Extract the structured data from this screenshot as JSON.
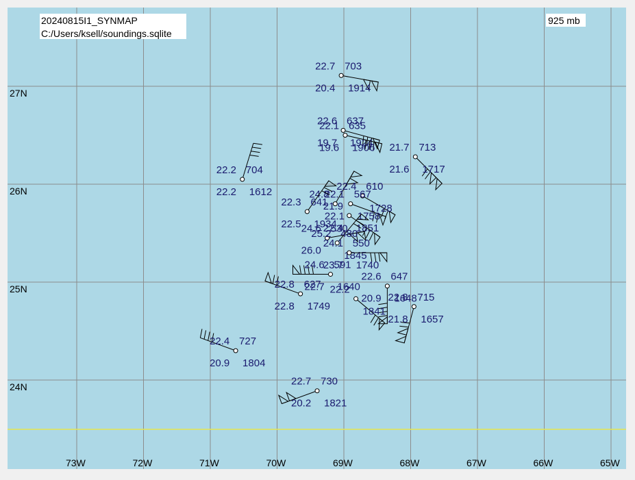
{
  "title": {
    "line1": "20240815I1_SYNMAP",
    "line2": "C:/Users/ksell/soundings.sqlite"
  },
  "level": "925 mb",
  "colors": {
    "ocean": "#add8e6",
    "grid": "#8c8c8c",
    "text": "#1a1a6e",
    "barb": "#000000",
    "accent": "#e6e64d",
    "frame": "#ffffff"
  },
  "lat_labels": [
    {
      "text": "27N",
      "lat": 27
    },
    {
      "text": "26N",
      "lat": 26
    },
    {
      "text": "25N",
      "lat": 25
    },
    {
      "text": "24N",
      "lat": 24
    }
  ],
  "lon_labels": [
    {
      "text": "73W",
      "lon": -73
    },
    {
      "text": "72W",
      "lon": -72
    },
    {
      "text": "71W",
      "lon": -71
    },
    {
      "text": "70W",
      "lon": -70
    },
    {
      "text": "69W",
      "lon": -69
    },
    {
      "text": "68W",
      "lon": -68
    },
    {
      "text": "67W",
      "lon": -67
    },
    {
      "text": "66W",
      "lon": -66
    },
    {
      "text": "65W",
      "lon": -65
    }
  ],
  "stations": [
    {
      "lat": 27.11,
      "lon": -69.04,
      "temp": "22.7",
      "dew": "20.4",
      "hgt": "703",
      "time": "1914",
      "barb": [
        100,
        10,
        0
      ]
    },
    {
      "lat": 26.55,
      "lon": -69.01,
      "temp": "22.6",
      "dew": "19.7",
      "hgt": "637",
      "time": "1924",
      "barb": [
        105,
        5,
        3
      ]
    },
    {
      "lat": 26.5,
      "lon": -68.98,
      "temp": "22.1",
      "dew": "19.6",
      "hgt": "635",
      "time": "1906",
      "barb": [
        103,
        5,
        3
      ]
    },
    {
      "lat": 26.28,
      "lon": -67.93,
      "temp": "21.7",
      "dew": "21.6",
      "hgt": "713",
      "time": "1717",
      "barb": [
        135,
        10,
        2
      ]
    },
    {
      "lat": 26.05,
      "lon": -70.52,
      "temp": "22.2",
      "dew": "22.2",
      "hgt": "704",
      "time": "1612",
      "barb": [
        17,
        0,
        4
      ]
    },
    {
      "lat": 25.8,
      "lon": -69.13,
      "temp": "24.8",
      "dew": "",
      "hgt": "",
      "time": "",
      "barb": [
        30,
        10,
        0
      ]
    },
    {
      "lat": 25.88,
      "lon": -68.72,
      "temp": "22.4",
      "dew": "",
      "hgt": "610",
      "time": "1728",
      "barb": [
        120,
        5,
        2
      ]
    },
    {
      "lat": 25.8,
      "lon": -68.9,
      "temp": "22.1",
      "dew": "22.1",
      "hgt": "567",
      "time": "1758",
      "barb": [
        110,
        5,
        2
      ]
    },
    {
      "lat": 25.72,
      "lon": -69.55,
      "temp": "22.3",
      "dew": "22.5",
      "hgt": "641",
      "time": "1934",
      "barb": [
        35,
        5,
        2
      ]
    },
    {
      "lat": 25.68,
      "lon": -68.92,
      "temp": "21.9",
      "dew": "22.4",
      "hgt": "",
      "time": "1851",
      "barb": [
        125,
        5,
        3
      ]
    },
    {
      "lat": 25.45,
      "lon": -69.25,
      "temp": "24.6",
      "dew": "26.0",
      "hgt": "530",
      "time": "",
      "barb": [
        80,
        10,
        0
      ]
    },
    {
      "lat": 25.4,
      "lon": -69.1,
      "temp": "25.2",
      "dew": "",
      "hgt": "480",
      "time": "1845",
      "barb": [
        40,
        5,
        2
      ]
    },
    {
      "lat": 25.3,
      "lon": -68.92,
      "temp": "24.1",
      "dew": "23.7",
      "hgt": "550",
      "time": "1740",
      "barb": [
        90,
        5,
        3
      ]
    },
    {
      "lat": 25.08,
      "lon": -69.2,
      "temp": "24.6",
      "dew": "22.7",
      "hgt": "591",
      "time": "1640",
      "barb": [
        270,
        5,
        4
      ]
    },
    {
      "lat": 24.96,
      "lon": -68.35,
      "temp": "22.6",
      "dew": "20.9",
      "hgt": "647",
      "time": "1648",
      "barb": [
        180,
        5,
        4
      ]
    },
    {
      "lat": 24.88,
      "lon": -69.65,
      "temp": "22.8",
      "dew": "22.8",
      "hgt": "627",
      "time": "1749",
      "barb": [
        290,
        5,
        2
      ]
    },
    {
      "lat": 24.83,
      "lon": -68.82,
      "temp": "22.2",
      "dew": "",
      "hgt": "",
      "time": "1841",
      "barb": [
        130,
        5,
        2
      ]
    },
    {
      "lat": 24.75,
      "lon": -67.95,
      "temp": "22.8",
      "dew": "21.8",
      "hgt": "715",
      "time": "1657",
      "barb": [
        195,
        10,
        2
      ]
    },
    {
      "lat": 24.3,
      "lon": -70.62,
      "temp": "22.4",
      "dew": "20.9",
      "hgt": "727",
      "time": "1804",
      "barb": [
        290,
        0,
        4
      ]
    },
    {
      "lat": 23.89,
      "lon": -69.4,
      "temp": "22.7",
      "dew": "20.2",
      "hgt": "730",
      "time": "1821",
      "barb": [
        250,
        10,
        0
      ]
    }
  ]
}
